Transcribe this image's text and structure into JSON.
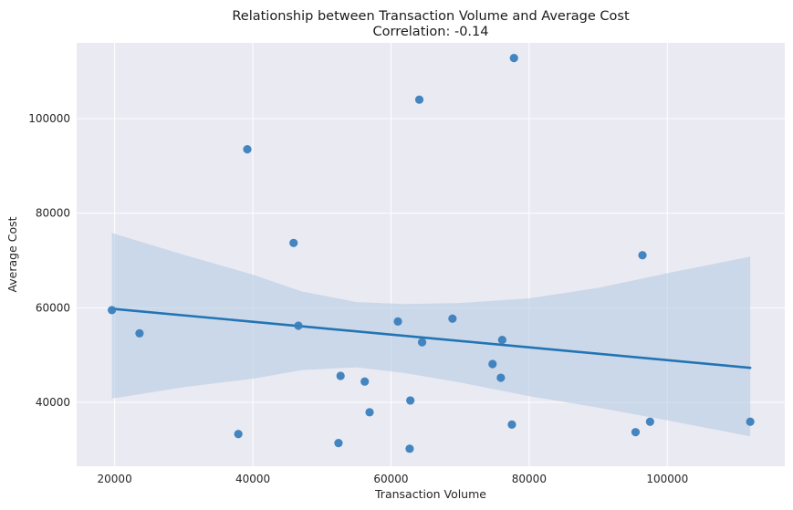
{
  "chart_data": {
    "type": "scatter",
    "title": "Relationship between Transaction Volume and Average Cost",
    "subtitle": "Correlation: -0.14",
    "xlabel": "Transaction Volume",
    "ylabel": "Average Cost",
    "xlim": [
      14500,
      117000
    ],
    "ylim": [
      26500,
      116000
    ],
    "xticks": [
      20000,
      40000,
      60000,
      80000,
      100000
    ],
    "yticks": [
      40000,
      60000,
      80000,
      100000
    ],
    "grid": true,
    "colors": {
      "background": "#eaeaf2",
      "grid": "#ffffff",
      "points": "#3a7fbd",
      "line": "#2274b5",
      "band": "#b5cce3"
    },
    "points": [
      {
        "x": 19600,
        "y": 59500
      },
      {
        "x": 23600,
        "y": 54600
      },
      {
        "x": 37900,
        "y": 33300
      },
      {
        "x": 39200,
        "y": 93500
      },
      {
        "x": 45900,
        "y": 73700
      },
      {
        "x": 46600,
        "y": 56200
      },
      {
        "x": 52400,
        "y": 31400
      },
      {
        "x": 52700,
        "y": 45600
      },
      {
        "x": 56200,
        "y": 44400
      },
      {
        "x": 56900,
        "y": 37900
      },
      {
        "x": 61000,
        "y": 57100
      },
      {
        "x": 62800,
        "y": 40400
      },
      {
        "x": 62700,
        "y": 30200
      },
      {
        "x": 64100,
        "y": 104000
      },
      {
        "x": 64500,
        "y": 52700
      },
      {
        "x": 68900,
        "y": 57700
      },
      {
        "x": 74700,
        "y": 48100
      },
      {
        "x": 75900,
        "y": 45200
      },
      {
        "x": 76100,
        "y": 53200
      },
      {
        "x": 77500,
        "y": 35300
      },
      {
        "x": 77800,
        "y": 112800
      },
      {
        "x": 95400,
        "y": 33700
      },
      {
        "x": 96400,
        "y": 71100
      },
      {
        "x": 97500,
        "y": 35900
      },
      {
        "x": 112000,
        "y": 35900
      }
    ],
    "regression": {
      "x": [
        19600,
        112000
      ],
      "y": [
        59800,
        47300
      ]
    },
    "confidence_band": {
      "x": [
        19600,
        30000,
        40000,
        47000,
        55000,
        62000,
        70000,
        80000,
        90000,
        100000,
        112000
      ],
      "upper": [
        75800,
        71200,
        67000,
        63500,
        61200,
        60800,
        61000,
        62000,
        64200,
        67300,
        70800
      ],
      "lower": [
        40800,
        43200,
        45000,
        46800,
        47400,
        46200,
        44200,
        41300,
        38900,
        36200,
        32800
      ]
    }
  }
}
